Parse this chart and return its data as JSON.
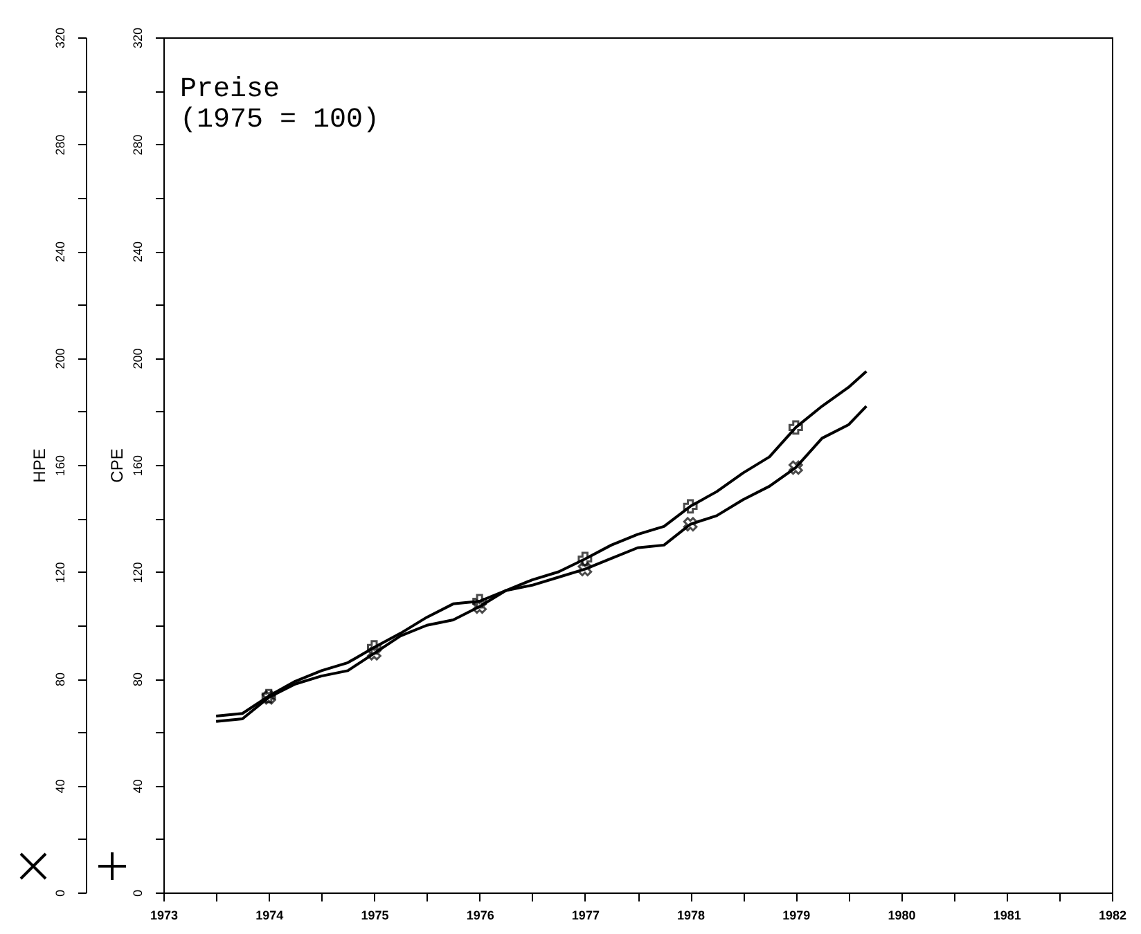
{
  "chart_data": {
    "type": "line",
    "title": "Preise",
    "subtitle": "(1975 = 100)",
    "ylabel": "HPE",
    "y2label": "CPE",
    "x": [
      1973.5,
      1973.75,
      1974,
      1974.25,
      1974.5,
      1974.75,
      1975,
      1975.25,
      1975.5,
      1975.75,
      1976,
      1976.25,
      1976.5,
      1976.75,
      1977,
      1977.25,
      1977.5,
      1977.75,
      1978,
      1978.25,
      1978.5,
      1978.75,
      1979,
      1979.25,
      1979.5,
      1979.67
    ],
    "series": [
      {
        "color": "#000000",
        "values": [
          64,
          65,
          73,
          78,
          81,
          83,
          89.5,
          96,
          100,
          102,
          107,
          113,
          115,
          118,
          121,
          125,
          129,
          130,
          137.8,
          141,
          147,
          152,
          159,
          170,
          175,
          182
        ]
      },
      {
        "type": "scatter",
        "color": "#000000",
        "marker": "cross",
        "x": [
          1974,
          1975,
          1976,
          1977,
          1978,
          1979
        ],
        "values": [
          73,
          89.5,
          107,
          121,
          137.8,
          159
        ]
      },
      {
        "color": "#000000",
        "axis": "y2",
        "values": [
          66,
          67,
          73.5,
          79,
          83,
          86,
          91.7,
          97,
          103,
          108,
          109,
          113,
          117,
          120,
          124.8,
          130,
          134,
          137,
          144.5,
          150,
          157,
          163,
          174,
          182,
          189,
          195
        ]
      },
      {
        "type": "scatter",
        "color": "#000000",
        "marker": "cross",
        "axis": "y2",
        "x": [
          1974,
          1975,
          1976,
          1977,
          1978,
          1979
        ],
        "values": [
          73.5,
          91.7,
          109,
          124.8,
          144.5,
          174
        ]
      }
    ],
    "xlim": [
      1973,
      1982
    ],
    "xticks": [
      1973,
      {
        "value": 1973.5,
        "label": null
      },
      1974,
      {
        "value": 1974.5,
        "label": null
      },
      1975,
      {
        "value": 1975.5,
        "label": null
      },
      1976,
      {
        "value": 1976.5,
        "label": null
      },
      1977,
      {
        "value": 1977.5,
        "label": null
      },
      1978,
      {
        "value": 1978.5,
        "label": null
      },
      1979,
      {
        "value": 1979.5,
        "label": null
      },
      1980,
      {
        "value": 1980.5,
        "label": null
      },
      1981,
      {
        "value": 1981.5,
        "label": null
      },
      1982
    ],
    "ylim": [
      0,
      320
    ],
    "yticks": [
      0,
      {
        "value": 20,
        "label": null
      },
      40,
      {
        "value": 60,
        "label": null
      },
      80,
      {
        "value": 100,
        "label": null
      },
      120,
      {
        "value": 140,
        "label": null
      },
      160,
      {
        "value": 180,
        "label": null
      },
      200,
      {
        "value": 220,
        "label": null
      },
      240,
      {
        "value": 260,
        "label": null
      },
      280,
      {
        "value": 300,
        "label": null
      },
      320
    ],
    "y2lim": [
      0,
      320
    ],
    "y2ticks": [
      0,
      {
        "value": 20,
        "label": null
      },
      40,
      {
        "value": 60,
        "label": null
      },
      80,
      {
        "value": 100,
        "label": null
      },
      120,
      {
        "value": 140,
        "label": null
      },
      160,
      {
        "value": 180,
        "label": null
      },
      200,
      {
        "value": 220,
        "label": null
      },
      240,
      {
        "value": 260,
        "label": null
      },
      280,
      {
        "value": 300,
        "label": null
      },
      320
    ]
  }
}
